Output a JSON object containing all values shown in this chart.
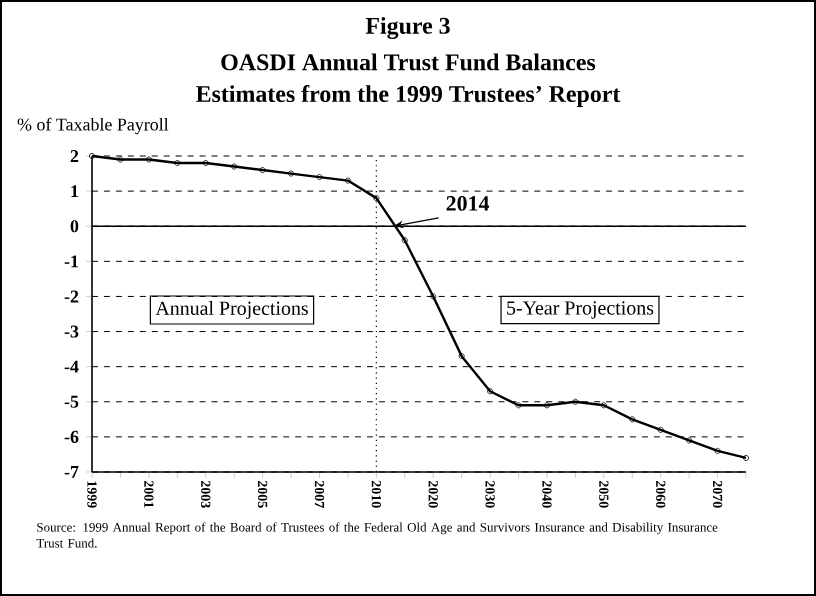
{
  "chart_data": {
    "type": "line",
    "title": "OASDI Annual Trust Fund Balances",
    "subtitle": "Estimates from the 1999 Trustees’ Report",
    "ylabel": "% of Taxable Payroll",
    "categories": [
      "1999",
      null,
      "2001",
      null,
      "2003",
      null,
      "2005",
      null,
      "2007",
      null,
      "2010",
      null,
      "2020",
      null,
      "2030",
      null,
      "2040",
      null,
      "2050",
      null,
      "2060",
      null,
      "2070",
      null
    ],
    "values": [
      2.0,
      1.9,
      1.9,
      1.8,
      1.8,
      1.7,
      1.6,
      1.5,
      1.4,
      1.3,
      0.8,
      -0.4,
      -2.0,
      -3.7,
      -4.7,
      -5.1,
      -5.1,
      -5.0,
      -5.1,
      -5.5,
      -5.8,
      -6.1,
      -6.4,
      -6.6
    ],
    "color": "#000000",
    "marker": "circle",
    "line_style": "solid",
    "grid": "y",
    "ylim": [
      -7,
      2
    ],
    "yticks": [
      -7,
      -6,
      -5,
      -4,
      -3,
      -2,
      -1,
      0,
      1,
      2
    ],
    "ref_lines": [
      {
        "axis": "y",
        "value": 0,
        "line_style": "solid"
      },
      {
        "axis": "x",
        "value": "2010",
        "line_style": "dotted"
      }
    ],
    "annotations": [
      "Figure 3",
      {
        "text": "2014",
        "y": 0
      },
      "Annual Projections",
      "5-Year Projections",
      "Source: 1999 Annual Report of the Board of Trustees of the Federal Old Age and Survivors Insurance and Disability Insurance Trust Fund."
    ]
  }
}
